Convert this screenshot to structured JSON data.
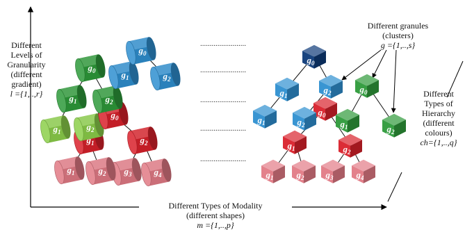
{
  "labels": {
    "levels": [
      "Different",
      "Levels of",
      "Granularity",
      "(different",
      "gradient)"
    ],
    "levels_formula": "l ={1,..,r}",
    "granules": [
      "Different granules",
      "(clusters)"
    ],
    "granules_formula": "g ={1,..,s}",
    "hierarchy": [
      "Different",
      "Types of",
      "Hierarchy",
      "(different",
      "colours)"
    ],
    "hierarchy_formula": "ch={1,..,q}",
    "modality": [
      "Different Types of Modality",
      "(different shapes)"
    ],
    "modality_formula": "m ={1,..,p}",
    "dots": "........................"
  },
  "colors": {
    "blue": "#2f8fd0",
    "dark_blue": "#0d3a78",
    "green": "#2e9a3a",
    "light_green": "#8ccf4a",
    "red": "#d9212b",
    "pink": "#e27a85",
    "axis": "#000000"
  },
  "cylinder_nodes": [
    {
      "id": "c_g0_blue",
      "label": "g0",
      "color": "blue"
    },
    {
      "id": "c_g0_green",
      "label": "g0",
      "color": "green"
    },
    {
      "id": "c_g1_blue",
      "label": "g1",
      "color": "blue"
    },
    {
      "id": "c_g2_blue",
      "label": "g2",
      "color": "blue"
    },
    {
      "id": "c_g1_green",
      "label": "g1",
      "color": "green"
    },
    {
      "id": "c_g2_green",
      "label": "g2",
      "color": "green"
    },
    {
      "id": "c_g0_red",
      "label": "g0",
      "color": "red"
    },
    {
      "id": "c_g1_lgreen",
      "label": "g1",
      "color": "light_green"
    },
    {
      "id": "c_g2_lgreen",
      "label": "g2",
      "color": "light_green"
    },
    {
      "id": "c_g1_red",
      "label": "g1",
      "color": "red"
    },
    {
      "id": "c_g2_red",
      "label": "g2",
      "color": "red"
    },
    {
      "id": "c_g1_pink",
      "label": "g1",
      "color": "pink"
    },
    {
      "id": "c_g2_pink",
      "label": "g2",
      "color": "pink"
    },
    {
      "id": "c_g3_pink",
      "label": "g3",
      "color": "pink"
    },
    {
      "id": "c_g4_pink",
      "label": "g4",
      "color": "pink"
    }
  ],
  "cube_nodes": [
    {
      "id": "q_g0_dblue",
      "label": "g0",
      "color": "dark_blue"
    },
    {
      "id": "q_g1_blue",
      "label": "g1",
      "color": "blue"
    },
    {
      "id": "q_g2_blue",
      "label": "g2",
      "color": "blue"
    },
    {
      "id": "q_g0_green",
      "label": "g0",
      "color": "green"
    },
    {
      "id": "q_g0_red",
      "label": "g0",
      "color": "red"
    },
    {
      "id": "q_g1_blue_b",
      "label": "g1",
      "color": "blue"
    },
    {
      "id": "q_g2_blue_b",
      "label": "g2",
      "color": "blue"
    },
    {
      "id": "q_g1_green",
      "label": "g1",
      "color": "green"
    },
    {
      "id": "q_g2_green",
      "label": "g2",
      "color": "green"
    },
    {
      "id": "q_g1_red",
      "label": "g1",
      "color": "red"
    },
    {
      "id": "q_g2_red",
      "label": "g2",
      "color": "red"
    },
    {
      "id": "q_g1_pink",
      "label": "g1",
      "color": "pink"
    },
    {
      "id": "q_g2_pink",
      "label": "g2",
      "color": "pink"
    },
    {
      "id": "q_g3_pink",
      "label": "g3",
      "color": "pink"
    },
    {
      "id": "q_g4_pink",
      "label": "g4",
      "color": "pink"
    }
  ]
}
